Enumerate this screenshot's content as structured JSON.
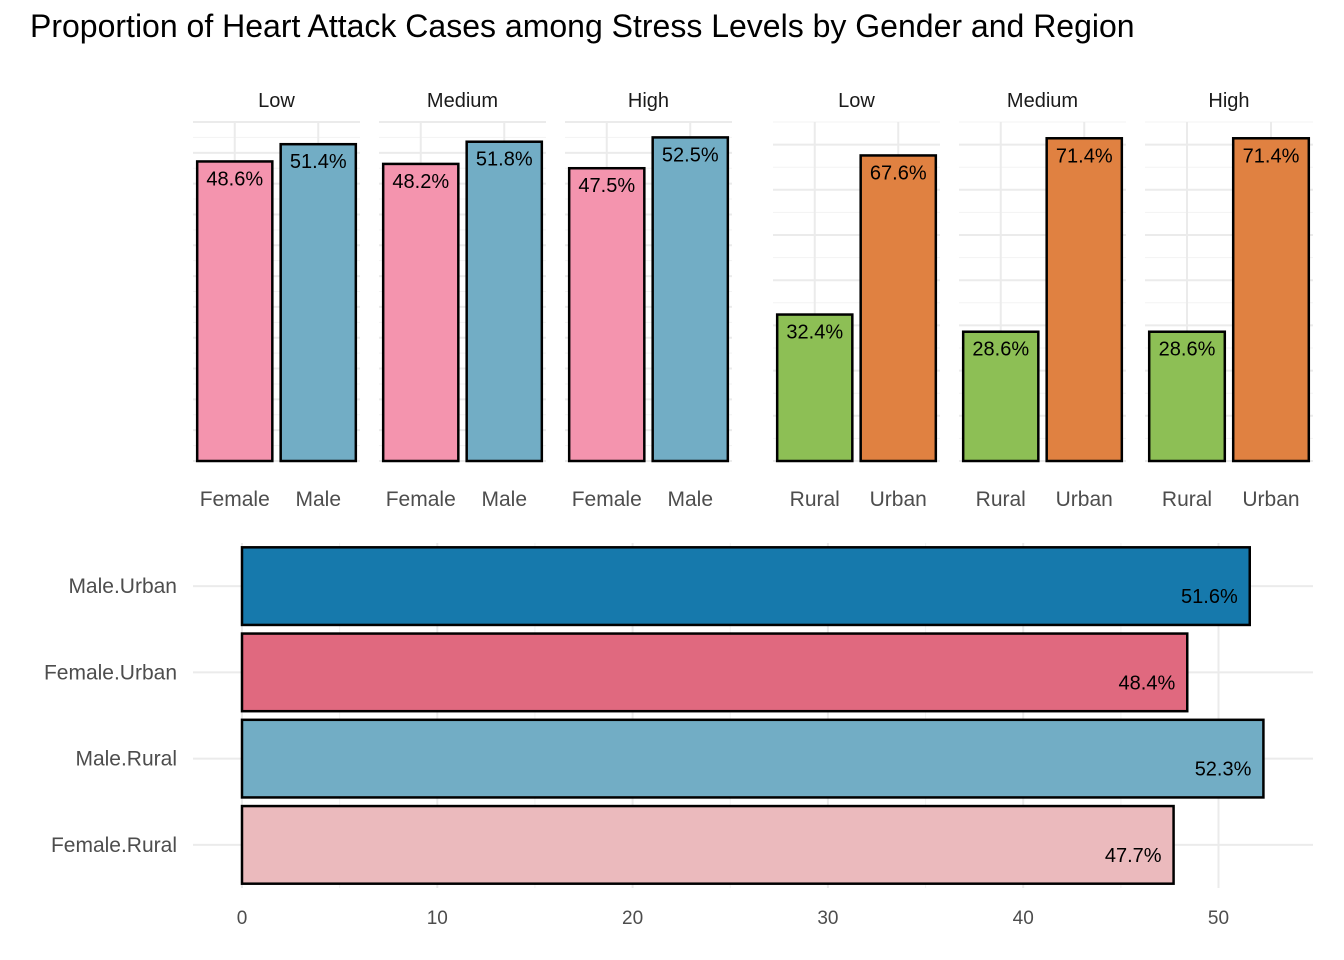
{
  "title": "Proportion of Heart Attack Cases among Stress Levels by Gender and Region",
  "chart_data": [
    {
      "type": "bar",
      "facet_by": "Stress Level",
      "categories": [
        "Female",
        "Male"
      ],
      "colors": {
        "Female": "#F494AE",
        "Male": "#72ADC5"
      },
      "facets": [
        {
          "label": "Low",
          "values": [
            48.6,
            51.4
          ],
          "labels": [
            "48.6%",
            "51.4%"
          ]
        },
        {
          "label": "Medium",
          "values": [
            48.2,
            51.8
          ],
          "labels": [
            "48.2%",
            "51.8%"
          ]
        },
        {
          "label": "High",
          "values": [
            47.5,
            52.5
          ],
          "labels": [
            "47.5%",
            "52.5%"
          ]
        }
      ],
      "ylim": [
        0,
        55
      ],
      "grid": true,
      "y_tick_labels": false
    },
    {
      "type": "bar",
      "facet_by": "Stress Level",
      "categories": [
        "Rural",
        "Urban"
      ],
      "colors": {
        "Rural": "#8DBF55",
        "Urban": "#E08141"
      },
      "facets": [
        {
          "label": "Low",
          "values": [
            32.4,
            67.6
          ],
          "labels": [
            "32.4%",
            "67.6%"
          ]
        },
        {
          "label": "Medium",
          "values": [
            28.6,
            71.4
          ],
          "labels": [
            "28.6%",
            "71.4%"
          ]
        },
        {
          "label": "High",
          "values": [
            28.6,
            71.4
          ],
          "labels": [
            "28.6%",
            "71.4%"
          ]
        }
      ],
      "ylim": [
        0,
        75
      ],
      "grid": true,
      "y_tick_labels": false
    },
    {
      "type": "bar",
      "orientation": "horizontal",
      "categories": [
        "Female.Rural",
        "Male.Rural",
        "Female.Urban",
        "Male.Urban"
      ],
      "values": [
        47.7,
        52.3,
        48.4,
        51.6
      ],
      "labels": [
        "47.7%",
        "52.3%",
        "48.4%",
        "51.6%"
      ],
      "colors": [
        "#EBBABD",
        "#72ADC5",
        "#E0697F",
        "#1679AC"
      ],
      "xlim": [
        0,
        52.3
      ],
      "x_ticks": [
        0,
        10,
        20,
        30,
        40,
        50
      ],
      "grid": true
    }
  ]
}
